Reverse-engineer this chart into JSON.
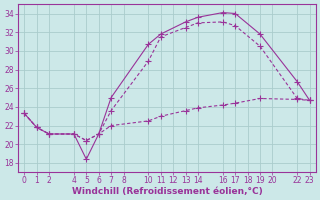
{
  "background_color": "#cce8e8",
  "grid_color": "#aacccc",
  "line_color": "#993399",
  "xlabel": "Windchill (Refroidissement éolien,°C)",
  "xlabel_fontsize": 6.5,
  "tick_fontsize": 5.5,
  "xlim": [
    -0.5,
    23.5
  ],
  "ylim": [
    17,
    35
  ],
  "yticks": [
    18,
    20,
    22,
    24,
    26,
    28,
    30,
    32,
    34
  ],
  "xticks": [
    0,
    1,
    2,
    4,
    5,
    6,
    7,
    8,
    10,
    11,
    12,
    13,
    14,
    16,
    17,
    18,
    19,
    20,
    22,
    23
  ],
  "line1_x": [
    0,
    1,
    2,
    4,
    5,
    6,
    7,
    10,
    11,
    13,
    14,
    16,
    17,
    19,
    22,
    23
  ],
  "line1_y": [
    23.3,
    21.8,
    21.1,
    21.1,
    18.4,
    21.1,
    25.0,
    30.7,
    31.8,
    33.1,
    33.6,
    34.1,
    34.0,
    31.8,
    26.7,
    24.7
  ],
  "line2_x": [
    0,
    1,
    2,
    4,
    5,
    6,
    7,
    10,
    11,
    13,
    14,
    16,
    17,
    19,
    22,
    23
  ],
  "line2_y": [
    23.3,
    21.8,
    21.1,
    21.1,
    20.4,
    21.1,
    23.6,
    28.9,
    31.5,
    32.5,
    33.0,
    33.1,
    32.7,
    30.5,
    24.9,
    24.7
  ],
  "line3_x": [
    0,
    1,
    2,
    4,
    5,
    6,
    7,
    10,
    11,
    13,
    14,
    16,
    17,
    19,
    22,
    23
  ],
  "line3_y": [
    23.3,
    21.8,
    21.1,
    21.1,
    20.4,
    21.1,
    22.0,
    22.5,
    23.0,
    23.6,
    23.9,
    24.2,
    24.4,
    24.9,
    24.8,
    24.7
  ]
}
